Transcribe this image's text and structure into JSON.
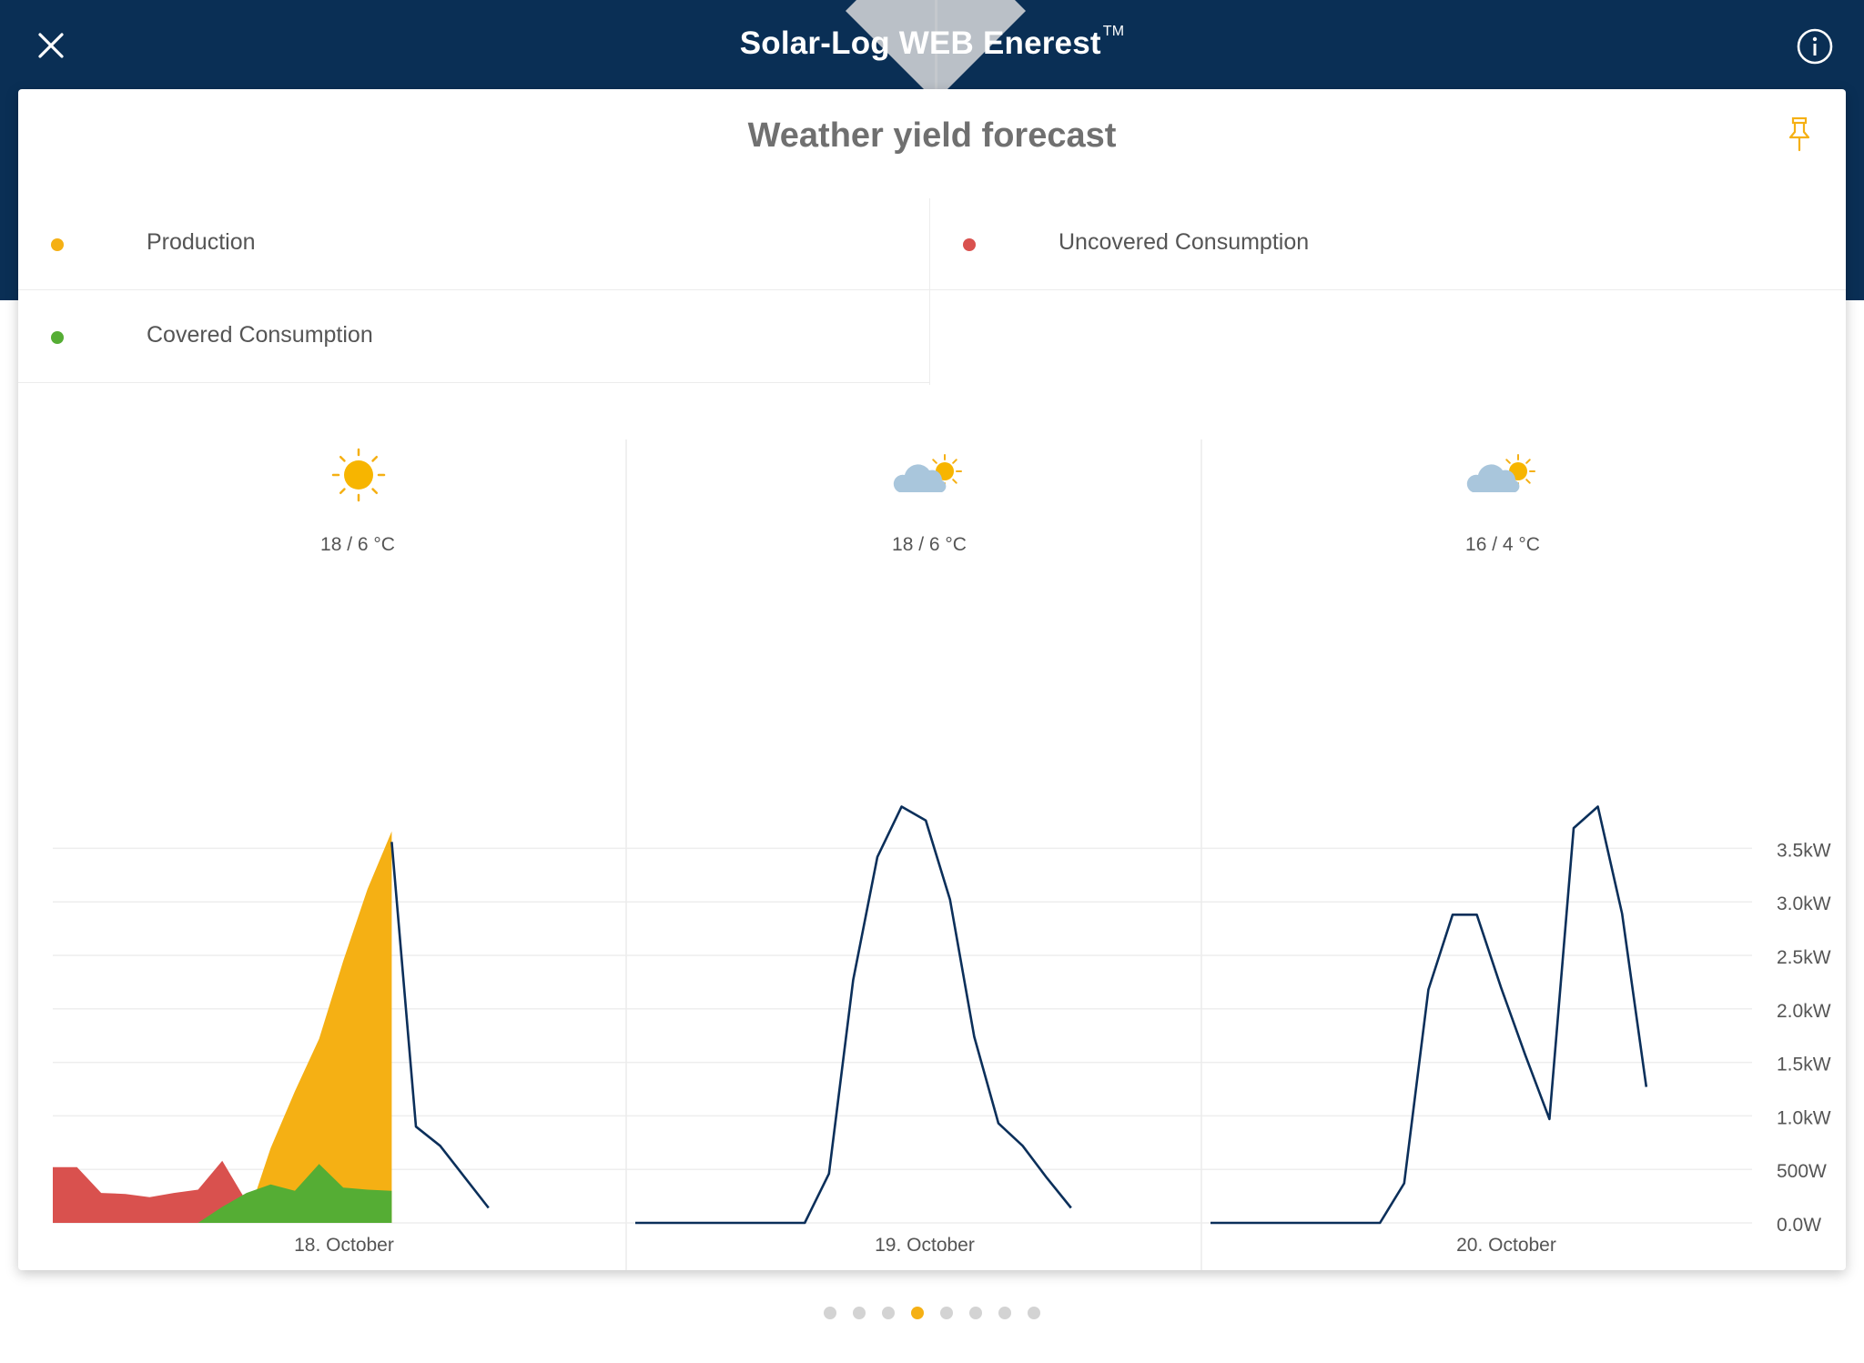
{
  "header": {
    "title": "Solar-Log WEB Enerest",
    "trademark": "TM",
    "close_icon": "close-icon",
    "info_icon": "info-icon"
  },
  "card": {
    "title": "Weather yield forecast",
    "pin_icon": "pin-icon"
  },
  "legend": [
    {
      "label": "Production",
      "color": "#f5b014"
    },
    {
      "label": "Uncovered Consumption",
      "color": "#d9514e"
    },
    {
      "label": "Covered Consumption",
      "color": "#55ad34"
    }
  ],
  "colors": {
    "header_bg": "#0a2f55",
    "forecast_line": "#0b2f5a",
    "production": "#f5b014",
    "uncovered": "#d9514e",
    "covered": "#55ad34",
    "pager_active": "#f5b014",
    "pager_inactive": "#d3d3d3"
  },
  "chart_data": {
    "type": "area",
    "y_unit": "W",
    "ylim": [
      0,
      3900
    ],
    "y_ticks": [
      "0.0W",
      "500W",
      "1.0kW",
      "1.5kW",
      "2.0kW",
      "2.5kW",
      "3.0kW",
      "3.5kW"
    ],
    "grid": true,
    "days": [
      {
        "date": "18. October",
        "weather_icon": "sun-icon",
        "temperature": "18 / 6 °C",
        "production": [
          [
            0,
            0
          ],
          [
            1,
            0
          ],
          [
            2,
            0
          ],
          [
            3,
            0
          ],
          [
            4,
            0
          ],
          [
            5,
            0
          ],
          [
            6,
            0
          ],
          [
            7,
            0
          ],
          [
            8,
            20
          ],
          [
            9,
            700
          ],
          [
            10,
            1230
          ],
          [
            11,
            1720
          ],
          [
            12,
            2450
          ],
          [
            13,
            3120
          ],
          [
            14,
            3660
          ]
        ],
        "covered_consumption": [
          [
            0,
            0
          ],
          [
            1,
            0
          ],
          [
            2,
            0
          ],
          [
            3,
            0
          ],
          [
            4,
            0
          ],
          [
            5,
            0
          ],
          [
            6,
            0
          ],
          [
            7,
            150
          ],
          [
            8,
            280
          ],
          [
            9,
            360
          ],
          [
            10,
            300
          ],
          [
            11,
            550
          ],
          [
            12,
            330
          ],
          [
            13,
            310
          ],
          [
            14,
            300
          ]
        ],
        "uncovered_consumption": [
          [
            0,
            520
          ],
          [
            1,
            520
          ],
          [
            2,
            280
          ],
          [
            3,
            270
          ],
          [
            4,
            240
          ],
          [
            5,
            280
          ],
          [
            6,
            310
          ],
          [
            7,
            580
          ],
          [
            8,
            200
          ],
          [
            9,
            0
          ],
          [
            10,
            0
          ],
          [
            11,
            0
          ],
          [
            12,
            0
          ],
          [
            13,
            0
          ],
          [
            14,
            0
          ]
        ],
        "forecast": [
          [
            14,
            3560
          ],
          [
            15,
            900
          ],
          [
            16,
            720
          ],
          [
            17,
            430
          ],
          [
            18,
            140
          ]
        ]
      },
      {
        "date": "19. October",
        "weather_icon": "partly-cloudy-icon",
        "temperature": "18 / 6 °C",
        "forecast": [
          [
            0,
            0
          ],
          [
            1,
            0
          ],
          [
            2,
            0
          ],
          [
            3,
            0
          ],
          [
            4,
            0
          ],
          [
            5,
            0
          ],
          [
            6,
            0
          ],
          [
            7,
            0
          ],
          [
            8,
            460
          ],
          [
            9,
            2270
          ],
          [
            10,
            3420
          ],
          [
            11,
            3890
          ],
          [
            12,
            3760
          ],
          [
            13,
            3020
          ],
          [
            14,
            1740
          ],
          [
            15,
            930
          ],
          [
            16,
            720
          ],
          [
            17,
            420
          ],
          [
            18,
            140
          ]
        ]
      },
      {
        "date": "20. October",
        "weather_icon": "partly-cloudy-icon",
        "temperature": "16 / 4 °C",
        "forecast": [
          [
            0,
            0
          ],
          [
            1,
            0
          ],
          [
            2,
            0
          ],
          [
            3,
            0
          ],
          [
            4,
            0
          ],
          [
            5,
            0
          ],
          [
            6,
            0
          ],
          [
            7,
            0
          ],
          [
            8,
            370
          ],
          [
            9,
            2180
          ],
          [
            10,
            2880
          ],
          [
            11,
            2880
          ],
          [
            12,
            2200
          ],
          [
            13,
            1570
          ],
          [
            14,
            970
          ],
          [
            15,
            3690
          ],
          [
            16,
            3890
          ],
          [
            17,
            2890
          ],
          [
            18,
            1270
          ]
        ]
      }
    ]
  },
  "pager": {
    "count": 8,
    "active_index": 3
  }
}
